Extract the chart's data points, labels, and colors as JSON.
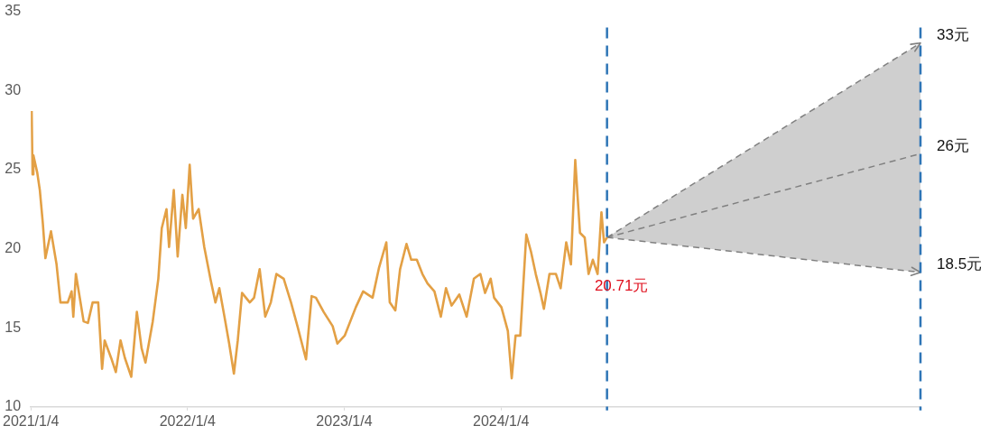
{
  "chart_data": {
    "type": "line",
    "marker": "none",
    "xlim": [
      "2021-01-04",
      "2026-09-07"
    ],
    "xticks": [
      {
        "value": "2021-01-04",
        "label": "2021/1/4"
      },
      {
        "value": "2022-01-04",
        "label": "2022/1/4"
      },
      {
        "value": "2023-01-04",
        "label": "2023/1/4"
      },
      {
        "value": "2024-01-04",
        "label": "2024/1/4"
      }
    ],
    "ylim": [
      10,
      35
    ],
    "yticks": [
      10,
      15,
      20,
      25,
      30,
      35
    ],
    "series": [
      {
        "color": "#e3a045",
        "x": [
          "2021-01-06",
          "2021-01-08",
          "2021-01-10",
          "2021-01-19",
          "2021-01-25",
          "2021-02-01",
          "2021-02-07",
          "2021-02-20",
          "2021-03-05",
          "2021-03-14",
          "2021-03-31",
          "2021-04-09",
          "2021-04-13",
          "2021-04-19",
          "2021-05-07",
          "2021-05-17",
          "2021-05-28",
          "2021-06-10",
          "2021-06-19",
          "2021-06-25",
          "2021-07-10",
          "2021-07-21",
          "2021-08-01",
          "2021-08-11",
          "2021-08-26",
          "2021-09-08",
          "2021-09-19",
          "2021-09-28",
          "2021-10-15",
          "2021-10-28",
          "2021-11-05",
          "2021-11-16",
          "2021-11-22",
          "2021-12-03",
          "2021-12-12",
          "2021-12-23",
          "2021-12-31",
          "2022-01-09",
          "2022-01-17",
          "2022-01-30",
          "2022-02-12",
          "2022-02-27",
          "2022-03-10",
          "2022-03-19",
          "2022-03-31",
          "2022-04-11",
          "2022-04-22",
          "2022-05-01",
          "2022-05-11",
          "2022-05-29",
          "2022-06-08",
          "2022-06-21",
          "2022-07-04",
          "2022-07-17",
          "2022-07-30",
          "2022-08-16",
          "2022-09-02",
          "2022-09-17",
          "2022-10-07",
          "2022-10-20",
          "2022-10-30",
          "2022-11-17",
          "2022-12-08",
          "2022-12-19",
          "2023-01-05",
          "2023-01-31",
          "2023-02-17",
          "2023-03-11",
          "2023-03-26",
          "2023-04-12",
          "2023-04-20",
          "2023-05-03",
          "2023-05-14",
          "2023-05-29",
          "2023-06-09",
          "2023-06-22",
          "2023-07-05",
          "2023-07-17",
          "2023-08-02",
          "2023-08-17",
          "2023-08-29",
          "2023-09-11",
          "2023-09-29",
          "2023-10-16",
          "2023-11-02",
          "2023-11-17",
          "2023-11-28",
          "2023-12-11",
          "2023-12-19",
          "2024-01-05",
          "2024-01-20",
          "2024-01-29",
          "2024-02-07",
          "2024-02-18",
          "2024-03-03",
          "2024-03-14",
          "2024-03-25",
          "2024-04-05",
          "2024-04-13",
          "2024-04-26",
          "2024-05-11",
          "2024-05-22",
          "2024-06-04",
          "2024-06-15",
          "2024-06-25",
          "2024-07-06",
          "2024-07-17",
          "2024-07-26",
          "2024-08-05",
          "2024-08-16",
          "2024-08-25",
          "2024-08-31",
          "2024-09-07"
        ],
        "values": [
          28.7,
          24.7,
          25.9,
          24.8,
          23.7,
          21.6,
          19.4,
          21.1,
          19.0,
          16.6,
          16.6,
          17.3,
          15.7,
          18.4,
          15.4,
          15.3,
          16.6,
          16.6,
          12.4,
          14.2,
          13.1,
          12.2,
          14.2,
          13.1,
          11.9,
          16.0,
          13.7,
          12.8,
          15.4,
          18.1,
          21.3,
          22.5,
          20.1,
          23.7,
          19.5,
          23.4,
          21.3,
          25.3,
          21.9,
          22.5,
          20.1,
          18.0,
          16.6,
          17.5,
          15.7,
          14.0,
          12.1,
          14.2,
          17.2,
          16.6,
          16.9,
          18.7,
          15.7,
          16.6,
          18.4,
          18.1,
          16.6,
          15.1,
          13.0,
          17.0,
          16.9,
          16.0,
          15.1,
          14.0,
          14.5,
          16.3,
          17.3,
          16.9,
          18.8,
          20.4,
          16.6,
          16.1,
          18.7,
          20.3,
          19.3,
          19.3,
          18.4,
          17.8,
          17.3,
          15.7,
          17.5,
          16.4,
          17.1,
          15.7,
          18.1,
          18.4,
          17.2,
          18.1,
          16.9,
          16.3,
          14.8,
          11.8,
          14.5,
          14.5,
          20.9,
          19.8,
          18.4,
          17.2,
          16.2,
          18.4,
          18.4,
          17.5,
          20.4,
          19.0,
          25.6,
          21.0,
          20.7,
          18.4,
          19.3,
          18.4,
          22.3,
          20.4,
          20.71
        ]
      },
      {
        "color": "#808080",
        "line_style": "dashed",
        "x": [
          "2024-09-07",
          "2026-09-07"
        ],
        "values": [
          20.71,
          26
        ],
        "lower": [
          20.71,
          18.5
        ],
        "upper": [
          20.71,
          33
        ]
      }
    ],
    "ref_lines": [
      {
        "axis": "x",
        "value": "2024-09-07",
        "color": "#2e75b6",
        "line_style": "dashed"
      },
      {
        "axis": "x",
        "value": "2026-09-07",
        "color": "#2e75b6",
        "line_style": "dashed"
      }
    ],
    "annotations": [
      {
        "text": "20.71元",
        "x": "2024-09-07",
        "y": 20.71
      },
      {
        "text": "33元",
        "x": "2026-09-07",
        "y": 33
      },
      {
        "text": "26元",
        "x": "2026-09-07",
        "y": 26
      },
      {
        "text": "18.5元",
        "x": "2026-09-07",
        "y": 18.5
      }
    ]
  }
}
